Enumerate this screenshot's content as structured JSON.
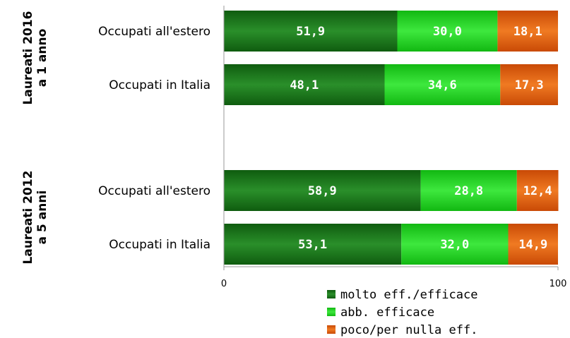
{
  "chart_data": {
    "type": "bar",
    "orientation": "horizontal",
    "stacked": true,
    "groups": [
      {
        "label": [
          "Laureati 2016",
          "a 1 anno"
        ],
        "rows": [
          {
            "category": "Occupati all'estero",
            "values": [
              "51,9",
              "30,0",
              "18,1"
            ],
            "numeric": [
              51.9,
              30.0,
              18.1
            ]
          },
          {
            "category": "Occupati in Italia",
            "values": [
              "48,1",
              "34,6",
              "17,3"
            ],
            "numeric": [
              48.1,
              34.6,
              17.3
            ]
          }
        ]
      },
      {
        "label": [
          "Laureati 2012",
          "a 5 anni"
        ],
        "rows": [
          {
            "category": "Occupati all'estero",
            "values": [
              "58,9",
              "28,8",
              "12,4"
            ],
            "numeric": [
              58.9,
              28.8,
              12.4
            ]
          },
          {
            "category": "Occupati in Italia",
            "values": [
              "53,1",
              "32,0",
              "14,9"
            ],
            "numeric": [
              53.1,
              32.0,
              14.9
            ]
          }
        ]
      }
    ],
    "series": [
      {
        "name": "molto eff./efficace",
        "color": "#1b7a1b",
        "gradient": [
          "#0f5c0f",
          "#2a8f2a",
          "#0f5c0f"
        ]
      },
      {
        "name": "abb. efficace",
        "color": "#22cc22",
        "gradient": [
          "#12b812",
          "#3ee83e",
          "#12b812"
        ]
      },
      {
        "name": "poco/per nulla eff.",
        "color": "#e05a0c",
        "gradient": [
          "#c94a06",
          "#f07a22",
          "#c94a06"
        ]
      }
    ],
    "xlim": [
      0,
      100
    ],
    "x_ticks": [
      "0",
      "100"
    ],
    "grid": false,
    "legend_position": "bottom"
  }
}
